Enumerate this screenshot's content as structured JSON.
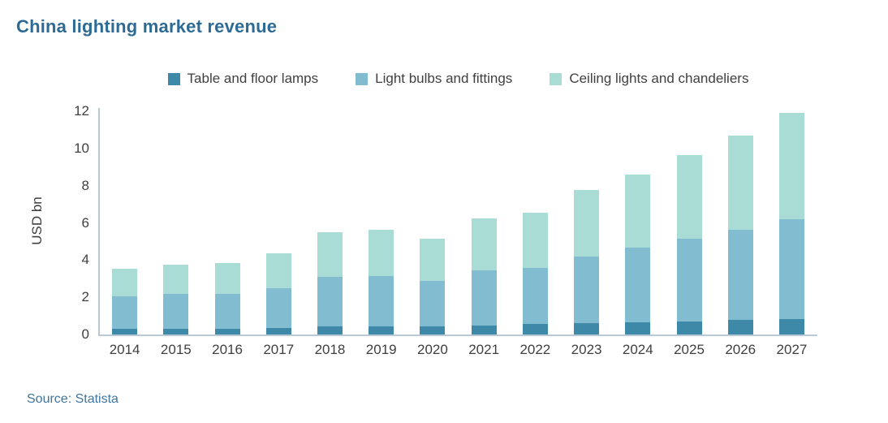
{
  "page": {
    "title": "China lighting market revenue",
    "source": "Source: Statista"
  },
  "colors": {
    "title_text": "#2e6b94",
    "source_text": "#40759f",
    "axis_line": "#b9c9d7",
    "tick_text": "#404040"
  },
  "chart_data": {
    "type": "bar",
    "stacked": true,
    "title": "China lighting market revenue",
    "xlabel": "",
    "ylabel": "USD bn",
    "ylim": [
      0,
      12
    ],
    "yticks": [
      0,
      2,
      4,
      6,
      8,
      10,
      12
    ],
    "grid": false,
    "legend_position": "top",
    "categories": [
      "2014",
      "2015",
      "2016",
      "2017",
      "2018",
      "2019",
      "2020",
      "2021",
      "2022",
      "2023",
      "2024",
      "2025",
      "2026",
      "2027"
    ],
    "series": [
      {
        "name": "Table and floor lamps",
        "color": "#3e89a7",
        "values": [
          0.3,
          0.3,
          0.3,
          0.35,
          0.45,
          0.45,
          0.45,
          0.5,
          0.55,
          0.6,
          0.65,
          0.7,
          0.8,
          0.85
        ]
      },
      {
        "name": "Light bulbs and fittings",
        "color": "#82bcd1",
        "values": [
          1.75,
          1.9,
          1.9,
          2.15,
          2.65,
          2.7,
          2.45,
          2.95,
          3.05,
          3.6,
          4.0,
          4.45,
          4.85,
          5.35
        ]
      },
      {
        "name": "Ceiling lights and chandeliers",
        "color": "#a8dcd4",
        "values": [
          1.5,
          1.55,
          1.65,
          1.85,
          2.4,
          2.5,
          2.25,
          2.8,
          2.95,
          3.55,
          3.95,
          4.5,
          5.05,
          5.7
        ]
      }
    ],
    "totals": [
      3.55,
      3.75,
      3.85,
      4.35,
      5.5,
      5.65,
      5.15,
      6.25,
      6.55,
      7.75,
      8.6,
      9.65,
      10.7,
      11.9
    ]
  }
}
